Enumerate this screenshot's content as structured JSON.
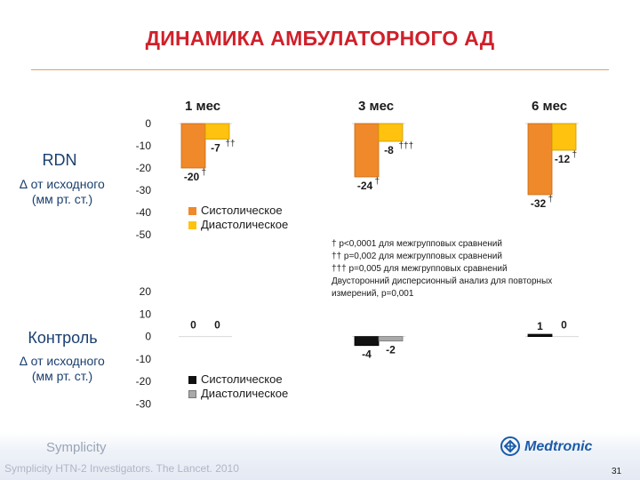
{
  "header": {
    "title": "ДИНАМИКА АМБУЛАТОРНОГО АД"
  },
  "periods": [
    "1 мес",
    "3 мес",
    "6 мес"
  ],
  "rdn_group": {
    "name": "RDN",
    "subtitle_1": "∆ от исходного",
    "subtitle_2": "(мм рт. ст.)"
  },
  "control_group": {
    "name": "Контроль",
    "subtitle_1": "∆ от исходного",
    "subtitle_2": "(мм рт. ст.)"
  },
  "legend": {
    "systolic": "Систолическое",
    "diastolic": "Диастолическое"
  },
  "notes": [
    "† p<0,0001 для межгрупповых сравнений",
    "†† p=0,002 для межгрупповых сравнений",
    "††† p=0,005 для межгрупповых сравнений",
    "Двусторонний дисперсионный анализ для повторных",
    "измерений, p=0,001"
  ],
  "footer": {
    "brand": "Symplicity",
    "citation": "Symplicity HTN-2 Investigators. The Lancet. 2010",
    "company": "Medtronic",
    "page": "31"
  },
  "colors": {
    "title": "#d0202a",
    "rdn_systolic": "#f0892a",
    "rdn_diastolic": "#ffc20e",
    "control_systolic": "#111111",
    "control_diastolic": "#a9a9a9",
    "text_group": "#1a3f6f"
  },
  "chart_data": [
    {
      "type": "bar",
      "name": "RDN",
      "categories": [
        "1 мес",
        "3 мес",
        "6 мес"
      ],
      "series": [
        {
          "name": "Систолическое",
          "values": [
            -20,
            -24,
            -32
          ],
          "markers": [
            "†",
            "†",
            "†"
          ]
        },
        {
          "name": "Диастолическое",
          "values": [
            -7,
            -8,
            -12
          ],
          "markers": [
            "††",
            "†††",
            "†"
          ]
        }
      ],
      "ylim": [
        -50,
        0
      ],
      "yticks": [
        0,
        -10,
        -20,
        -30,
        -40,
        -50
      ],
      "legend": "inside, lower-left of plot"
    },
    {
      "type": "bar",
      "name": "Контроль",
      "categories": [
        "1 мес",
        "3 мес",
        "6 мес"
      ],
      "series": [
        {
          "name": "Систолическое",
          "values": [
            0,
            -4,
            1
          ],
          "markers": [
            "",
            "",
            ""
          ]
        },
        {
          "name": "Диастолическое",
          "values": [
            0,
            -2,
            0
          ],
          "markers": [
            "",
            "",
            ""
          ]
        }
      ],
      "ylim": [
        -30,
        20
      ],
      "yticks": [
        20,
        10,
        0,
        -10,
        -20,
        -30
      ],
      "legend": "inside, lower-left of plot"
    }
  ]
}
